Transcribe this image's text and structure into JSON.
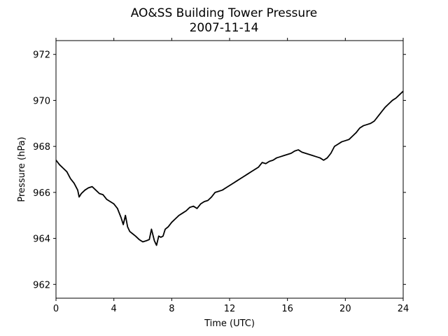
{
  "chart_data": {
    "type": "line",
    "title": "AO&SS Building Tower Pressure",
    "subtitle": "2007-11-14",
    "xlabel": "Time (UTC)",
    "ylabel": "Pressure (hPa)",
    "xlim": [
      0,
      24
    ],
    "ylim": [
      961.4,
      972.6
    ],
    "x_ticks": [
      0,
      4,
      8,
      12,
      16,
      20,
      24
    ],
    "y_ticks": [
      962,
      964,
      966,
      968,
      970,
      972
    ],
    "grid": false,
    "line_color": "#000000",
    "series": [
      {
        "x": [
          0,
          0.25,
          0.5,
          0.75,
          1.0,
          1.25,
          1.5,
          1.6,
          1.75,
          2.0,
          2.25,
          2.5,
          2.75,
          3.0,
          3.25,
          3.5,
          3.75,
          4.0,
          4.25,
          4.5,
          4.65,
          4.8,
          4.95,
          5.1,
          5.3,
          5.5,
          5.75,
          6.0,
          6.25,
          6.45,
          6.6,
          6.8,
          6.95,
          7.1,
          7.25,
          7.4,
          7.55,
          7.75,
          8.0,
          8.25,
          8.5,
          8.75,
          9.0,
          9.25,
          9.5,
          9.75,
          10.0,
          10.25,
          10.5,
          10.75,
          11.0,
          11.25,
          11.5,
          11.75,
          12.0,
          12.25,
          12.5,
          12.75,
          13.0,
          13.25,
          13.5,
          13.75,
          14.0,
          14.25,
          14.5,
          14.75,
          15.0,
          15.25,
          15.5,
          15.75,
          16.0,
          16.25,
          16.5,
          16.75,
          17.0,
          17.25,
          17.5,
          17.75,
          18.0,
          18.25,
          18.5,
          18.75,
          19.0,
          19.25,
          19.5,
          19.75,
          20.0,
          20.25,
          20.5,
          20.75,
          21.0,
          21.25,
          21.5,
          21.75,
          22.0,
          22.25,
          22.5,
          22.75,
          23.0,
          23.25,
          23.5,
          23.75,
          24.0
        ],
        "y": [
          967.4,
          967.2,
          967.05,
          966.9,
          966.6,
          966.4,
          966.1,
          965.8,
          965.95,
          966.1,
          966.2,
          966.25,
          966.1,
          965.95,
          965.9,
          965.7,
          965.6,
          965.5,
          965.3,
          964.9,
          964.6,
          965.0,
          964.5,
          964.3,
          964.2,
          964.1,
          963.95,
          963.85,
          963.9,
          963.95,
          964.4,
          963.9,
          963.7,
          964.1,
          964.05,
          964.1,
          964.4,
          964.5,
          964.7,
          964.85,
          965.0,
          965.1,
          965.2,
          965.35,
          965.4,
          965.3,
          965.5,
          965.6,
          965.65,
          965.8,
          966.0,
          966.05,
          966.1,
          966.2,
          966.3,
          966.4,
          966.5,
          966.6,
          966.7,
          966.8,
          966.9,
          967.0,
          967.1,
          967.3,
          967.25,
          967.35,
          967.4,
          967.5,
          967.55,
          967.6,
          967.65,
          967.7,
          967.8,
          967.85,
          967.75,
          967.7,
          967.65,
          967.6,
          967.55,
          967.5,
          967.4,
          967.5,
          967.7,
          968.0,
          968.1,
          968.2,
          968.25,
          968.3,
          968.45,
          968.6,
          968.8,
          968.9,
          968.95,
          969.0,
          969.1,
          969.3,
          969.5,
          969.7,
          969.85,
          970.0,
          970.1,
          970.25,
          970.4
        ]
      }
    ]
  }
}
